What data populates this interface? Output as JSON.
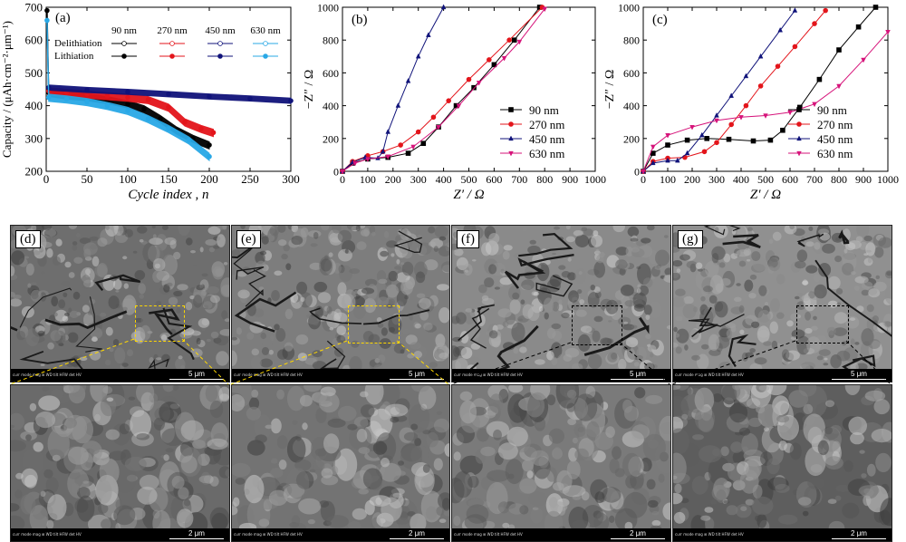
{
  "panels": {
    "a": "(a)",
    "b": "(b)",
    "c": "(c)",
    "d": "(d)",
    "e": "(e)",
    "f": "(f)",
    "g": "(g)"
  },
  "legend_a": {
    "rows": [
      "Delithiation",
      "Lithiation"
    ],
    "cols": [
      "90 nm",
      "270 nm",
      "450 nm",
      "630 nm"
    ]
  },
  "sem": {
    "scale_top": "5 μm",
    "scale_bottom": "2 μm",
    "infobar_text": "curr  mode  mag ⊞  WD  tilt  HFW  det  HV"
  },
  "colors": {
    "c90": "#000000",
    "c270": "#e3151b",
    "c450": "#10137a",
    "c630_a": "#29a8e6",
    "c630_bc": "#d6137a"
  },
  "chart_data": [
    {
      "type": "scatter",
      "panel": "(a)",
      "xlabel": "Cycle index , n",
      "ylabel": "Capacity / (μAh·cm⁻²·μm⁻¹)",
      "xlim": [
        0,
        300
      ],
      "ylim": [
        200,
        700
      ],
      "xticks": [
        0,
        50,
        100,
        150,
        200,
        250,
        300
      ],
      "yticks": [
        200,
        300,
        400,
        500,
        600,
        700
      ],
      "series": [
        {
          "name": "90 nm",
          "x": [
            3,
            25,
            50,
            75,
            100,
            120,
            140,
            160,
            180,
            200
          ],
          "y": [
            440,
            432,
            427,
            418,
            405,
            390,
            360,
            325,
            300,
            280
          ]
        },
        {
          "name": "270 nm",
          "x": [
            3,
            25,
            50,
            75,
            100,
            125,
            150,
            170,
            190,
            205
          ],
          "y": [
            445,
            440,
            435,
            430,
            425,
            418,
            395,
            350,
            330,
            318
          ]
        },
        {
          "name": "450 nm",
          "x": [
            3,
            50,
            100,
            150,
            200,
            250,
            300
          ],
          "y": [
            455,
            448,
            442,
            435,
            428,
            422,
            415
          ]
        },
        {
          "name": "630 nm",
          "x": [
            3,
            25,
            50,
            75,
            100,
            125,
            150,
            175,
            200
          ],
          "y": [
            425,
            420,
            412,
            400,
            385,
            360,
            330,
            295,
            245
          ]
        }
      ]
    },
    {
      "type": "line",
      "panel": "(b)",
      "xlabel": "Z′ / Ω",
      "ylabel": "−Z″ / Ω",
      "xlim": [
        0,
        1000
      ],
      "ylim": [
        0,
        1000
      ],
      "xticks": [
        0,
        100,
        200,
        300,
        400,
        500,
        600,
        700,
        800,
        900,
        1000
      ],
      "yticks": [
        0,
        200,
        400,
        600,
        800,
        1000
      ],
      "series": [
        {
          "name": "90 nm",
          "x": [
            0,
            40,
            100,
            180,
            260,
            320,
            380,
            450,
            520,
            600,
            680,
            780
          ],
          "y": [
            0,
            50,
            75,
            85,
            110,
            170,
            270,
            400,
            510,
            650,
            800,
            1000
          ]
        },
        {
          "name": "270 nm",
          "x": [
            0,
            40,
            100,
            160,
            230,
            300,
            360,
            420,
            500,
            580,
            660,
            790
          ],
          "y": [
            0,
            60,
            95,
            120,
            160,
            240,
            330,
            430,
            560,
            680,
            800,
            1000
          ]
        },
        {
          "name": "450 nm",
          "x": [
            0,
            40,
            90,
            140,
            160,
            180,
            220,
            260,
            300,
            340,
            400
          ],
          "y": [
            0,
            55,
            85,
            80,
            120,
            240,
            400,
            550,
            700,
            830,
            1000
          ]
        },
        {
          "name": "630 nm",
          "x": [
            0,
            50,
            100,
            180,
            280,
            380,
            460,
            540,
            640,
            700,
            800
          ],
          "y": [
            0,
            50,
            75,
            90,
            150,
            270,
            400,
            540,
            690,
            790,
            990
          ]
        }
      ]
    },
    {
      "type": "line",
      "panel": "(c)",
      "xlabel": "Z′ / Ω",
      "ylabel": "−Z″ / Ω",
      "xlim": [
        0,
        1000
      ],
      "ylim": [
        0,
        1000
      ],
      "xticks": [
        0,
        100,
        200,
        300,
        400,
        500,
        600,
        700,
        800,
        900,
        1000
      ],
      "yticks": [
        0,
        200,
        400,
        600,
        800,
        1000
      ],
      "series": [
        {
          "name": "90 nm",
          "x": [
            0,
            40,
            100,
            180,
            260,
            350,
            450,
            520,
            570,
            640,
            720,
            800,
            880,
            950
          ],
          "y": [
            0,
            110,
            160,
            190,
            200,
            195,
            185,
            190,
            250,
            390,
            560,
            740,
            880,
            1000
          ]
        },
        {
          "name": "270 nm",
          "x": [
            0,
            40,
            100,
            170,
            250,
            300,
            360,
            420,
            480,
            550,
            620,
            700,
            745
          ],
          "y": [
            0,
            60,
            80,
            85,
            120,
            175,
            285,
            400,
            520,
            640,
            760,
            900,
            980
          ]
        },
        {
          "name": "450 nm",
          "x": [
            0,
            40,
            100,
            140,
            180,
            240,
            300,
            360,
            420,
            480,
            560,
            620
          ],
          "y": [
            0,
            50,
            65,
            65,
            110,
            220,
            340,
            460,
            580,
            700,
            860,
            980
          ]
        },
        {
          "name": "630 nm",
          "x": [
            0,
            40,
            100,
            200,
            300,
            400,
            500,
            600,
            700,
            800,
            900,
            1000
          ],
          "y": [
            0,
            150,
            220,
            270,
            310,
            330,
            340,
            360,
            410,
            520,
            680,
            850
          ]
        }
      ]
    }
  ]
}
